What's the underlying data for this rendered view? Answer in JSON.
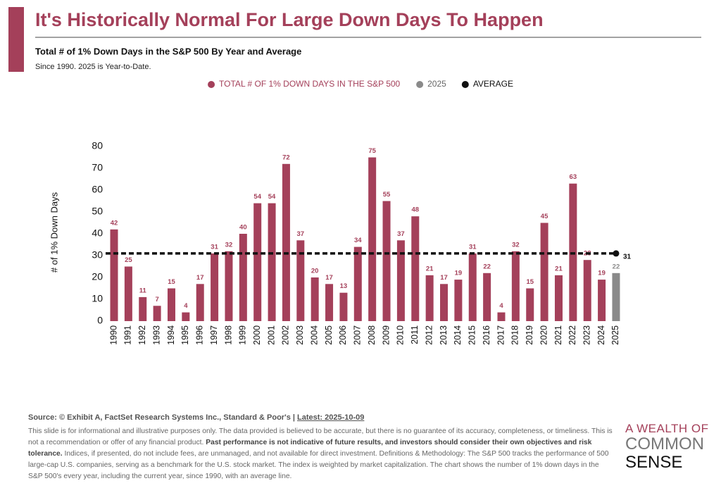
{
  "chart_data": {
    "type": "bar",
    "title": "It's Historically Normal For Large Down Days To Happen",
    "subtitle": "Total # of 1% Down Days in the S&P 500 By Year and Average",
    "note": "Since 1990. 2025 is Year-to-Date.",
    "y_label": "# of 1% Down Days",
    "categories": [
      "1990",
      "1991",
      "1992",
      "1993",
      "1994",
      "1995",
      "1996",
      "1997",
      "1998",
      "1999",
      "2000",
      "2001",
      "2002",
      "2003",
      "2004",
      "2005",
      "2006",
      "2007",
      "2008",
      "2009",
      "2010",
      "2011",
      "2012",
      "2013",
      "2014",
      "2015",
      "2016",
      "2017",
      "2018",
      "2019",
      "2020",
      "2021",
      "2022",
      "2023",
      "2024",
      "2025"
    ],
    "series": [
      {
        "name": "TOTAL # OF 1% DOWN DAYS IN THE S&P 500",
        "color": "#a4405a",
        "values": [
          42,
          25,
          11,
          7,
          15,
          4,
          17,
          31,
          32,
          40,
          54,
          54,
          72,
          37,
          20,
          17,
          13,
          34,
          75,
          55,
          37,
          48,
          21,
          17,
          19,
          31,
          22,
          4,
          32,
          15,
          45,
          21,
          63,
          28,
          19,
          null
        ]
      },
      {
        "name": "2025",
        "color": "#8a8a8a",
        "values": [
          null,
          null,
          null,
          null,
          null,
          null,
          null,
          null,
          null,
          null,
          null,
          null,
          null,
          null,
          null,
          null,
          null,
          null,
          null,
          null,
          null,
          null,
          null,
          null,
          null,
          null,
          null,
          null,
          null,
          null,
          null,
          null,
          null,
          null,
          null,
          22
        ]
      }
    ],
    "average": {
      "name": "AVERAGE",
      "value": 31,
      "color": "#111111"
    },
    "ylim": [
      0,
      80
    ],
    "yticks": [
      0,
      10,
      20,
      30,
      40,
      50,
      60,
      70,
      80
    ],
    "grid": false
  },
  "footer": {
    "source": "Source: © Exhibit A, FactSet Research Systems Inc., Standard & Poor's | ",
    "latest": "Latest: 2025-10-09",
    "disclaimer": [
      "This slide is for informational and illustrative purposes only. The data provided is believed to be accurate, but there is no guarantee of its accuracy, completeness, or timeliness. This is not a recommendation or offer of any financial product. ",
      "Past performance is not indicative of future results, and investors should consider their own objectives and risk tolerance.",
      " Indices, if presented, do not include fees, are unmanaged, and not available for direct investment. Definitions & Methodology: The S&P 500 tracks the performance of 500 large-cap U.S. companies, serving as a benchmark for the U.S. stock market. The index is weighted by market capitalization. The chart shows the number of 1% down days in the S&P 500's every year, including the current year, since 1990, with an average line."
    ]
  },
  "logo": {
    "line1": "A WEALTH OF",
    "line2": "COMMON",
    "line3": "SENSE"
  }
}
